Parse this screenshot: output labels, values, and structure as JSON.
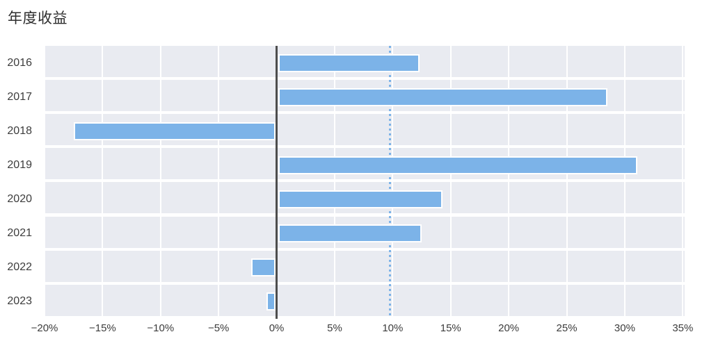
{
  "title": "年度收益",
  "chart_data": {
    "type": "bar",
    "orientation": "horizontal",
    "title": "年度收益",
    "categories": [
      "2016",
      "2017",
      "2018",
      "2019",
      "2020",
      "2021",
      "2022",
      "2023"
    ],
    "values": [
      12.3,
      28.5,
      -17.5,
      31.1,
      14.3,
      12.5,
      -2.2,
      -0.9
    ],
    "xlabel": "",
    "ylabel": "",
    "xlim": [
      -20,
      35.16
    ],
    "x_tick_values": [
      -20,
      -15,
      -10,
      -5,
      0,
      5,
      10,
      15,
      20,
      25,
      30,
      35
    ],
    "x_tick_labels": [
      "−20%",
      "−15%",
      "−10%",
      "−5%",
      "0%",
      "5%",
      "10%",
      "15%",
      "20%",
      "25%",
      "30%",
      "35%"
    ],
    "mean_line_value": 9.76,
    "grid": "on",
    "legend": "none",
    "colors": {
      "bar": "#7cb3e8",
      "plot_band": "#e9ebf1",
      "zero_line": "#4d4d4d",
      "mean_line": "#7cb3e8",
      "axis_text": "#3c3c3c",
      "title_text": "#2d2d2d",
      "background": "#ffffff"
    }
  }
}
